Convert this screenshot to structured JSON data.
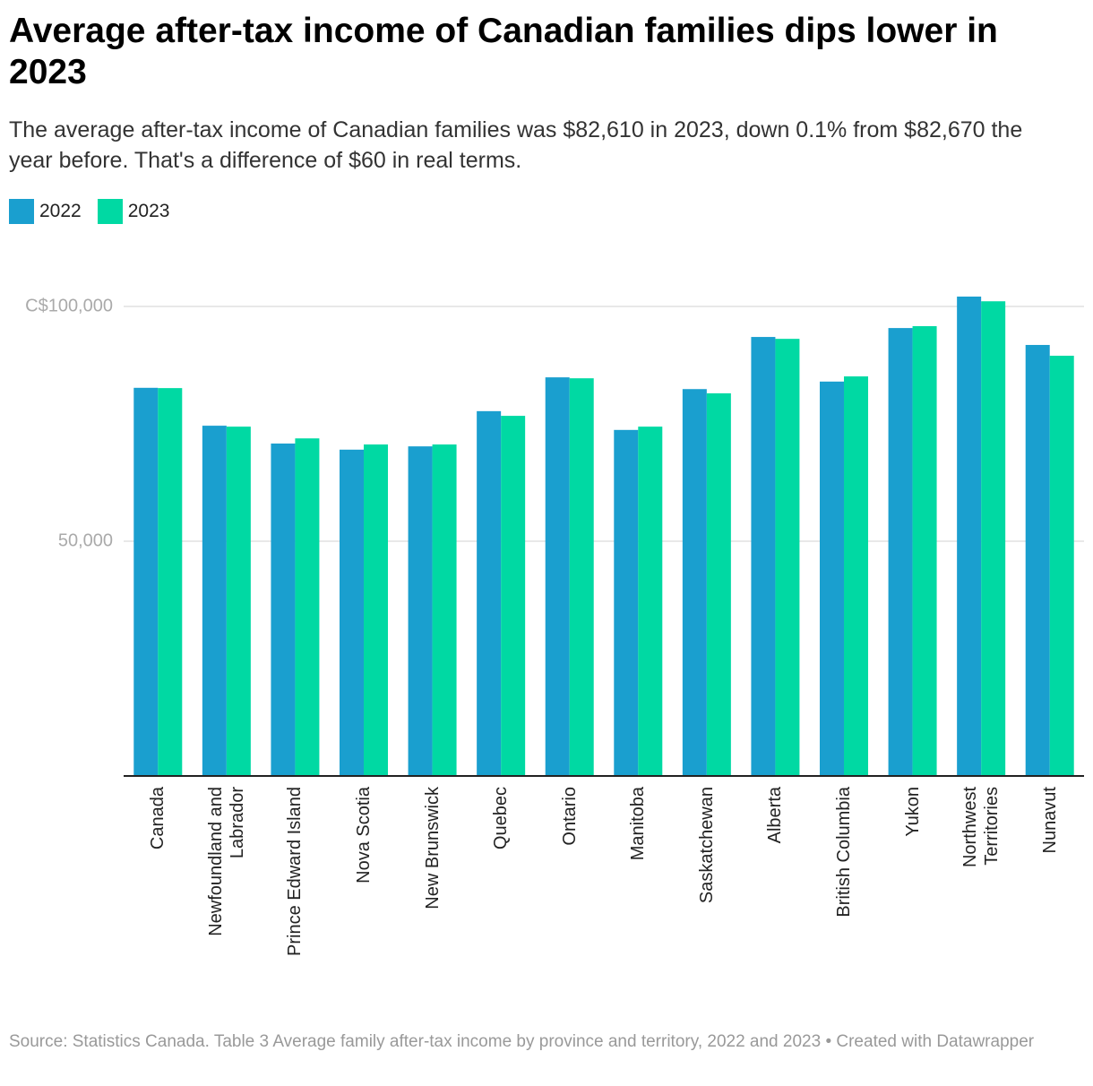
{
  "chart_data": {
    "type": "bar",
    "title": "Average after-tax income of Canadian families dips lower in 2023",
    "subtitle": "The average after-tax income of Canadian families was $82,610 in 2023, down 0.1% from $82,670 the year before. That's a difference of $60 in real terms.",
    "source": "Source: Statistics Canada. Table 3 Average family after-tax income by province and territory, 2022 and 2023  • Created with Datawrapper",
    "categories": [
      "Canada",
      "Newfoundland and Labrador",
      "Prince Edward Island",
      "Nova Scotia",
      "New Brunswick",
      "Quebec",
      "Ontario",
      "Manitoba",
      "Saskatchewan",
      "Alberta",
      "British Columbia",
      "Yukon",
      "Northwest Territories",
      "Nunavut"
    ],
    "series": [
      {
        "name": "2022",
        "color": "#1a9fcf",
        "values": [
          82670,
          74600,
          70800,
          69500,
          70200,
          77700,
          84900,
          73700,
          82400,
          93500,
          84000,
          95400,
          102100,
          91800
        ]
      },
      {
        "name": "2023",
        "color": "#00d9a3",
        "values": [
          82610,
          74400,
          71900,
          70600,
          70600,
          76700,
          84700,
          74400,
          81500,
          93100,
          85100,
          95800,
          101100,
          89500
        ]
      }
    ],
    "ylim": [
      0,
      104000
    ],
    "yticks": [
      {
        "value": 50000,
        "label": "50,000"
      },
      {
        "value": 100000,
        "label": "C$100,000"
      }
    ],
    "grid": true
  }
}
